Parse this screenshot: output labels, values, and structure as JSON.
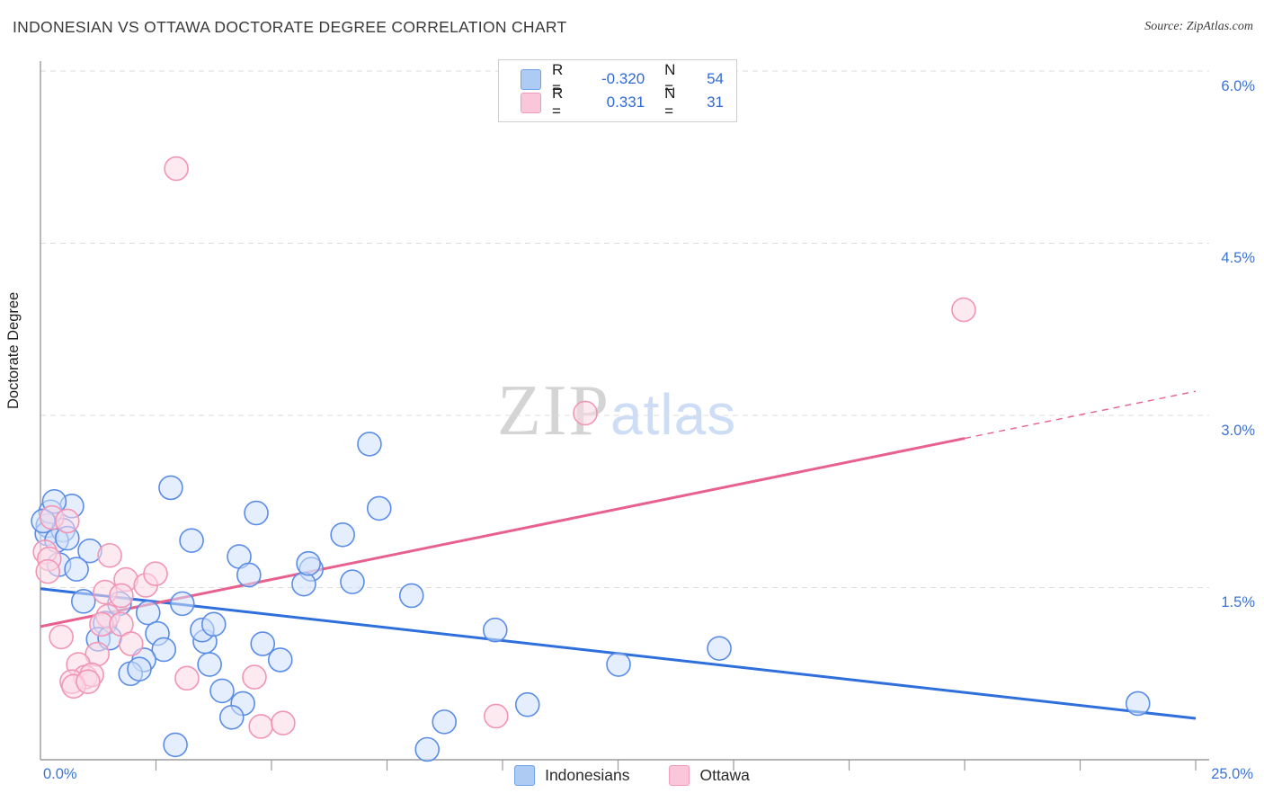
{
  "header": {
    "title": "INDONESIAN VS OTTAWA DOCTORATE DEGREE CORRELATION CHART",
    "source": "Source: ZipAtlas.com"
  },
  "watermark": {
    "zip": "ZIP",
    "atlas": "atlas"
  },
  "legend_box": {
    "series": [
      {
        "r_label": "R =",
        "r_value": "-0.320",
        "n_label": "N =",
        "n_value": "54"
      },
      {
        "r_label": "R =",
        "r_value": "0.331",
        "n_label": "N =",
        "n_value": "31"
      }
    ]
  },
  "axes": {
    "ylabel": "Doctorate Degree",
    "x_min_label": "0.0%",
    "x_max_label": "25.0%",
    "y_tick_labels": [
      "6.0%",
      "4.5%",
      "3.0%",
      "1.5%"
    ]
  },
  "bottom_legend": {
    "items": [
      {
        "label": "Indonesians"
      },
      {
        "label": "Ottawa"
      }
    ]
  },
  "colors": {
    "blue_fill": "#cfe0fa",
    "blue_stroke": "#5b8de8",
    "pink_fill": "#fbd9e6",
    "pink_stroke": "#f295b5",
    "blue_trend": "#2e6fdb",
    "pink_trend": "#e8608c",
    "grid": "#dddddd",
    "axis": "#9b9b9b",
    "tick_label": "#3b74d9"
  },
  "chart_data": {
    "type": "scatter",
    "title": "INDONESIAN VS OTTAWA DOCTORATE DEGREE CORRELATION CHART",
    "xlabel": "",
    "ylabel": "Doctorate Degree",
    "xlim": [
      0,
      25
    ],
    "ylim": [
      0,
      6.25
    ],
    "x_axis_ticks_every_pct": 2.5,
    "y_gridlines_pct": [
      6.0,
      4.5,
      3.0,
      1.5
    ],
    "grid": "dashed-horizontal",
    "legend_position": "bottom-center",
    "series": [
      {
        "name": "Indonesians",
        "R": -0.32,
        "N": 54,
        "points_pct": [
          [
            0.68,
            2.21
          ],
          [
            0.16,
            2.04
          ],
          [
            0.14,
            1.97
          ],
          [
            0.49,
            2.0
          ],
          [
            0.35,
            1.91
          ],
          [
            0.22,
            2.16
          ],
          [
            0.06,
            2.08
          ],
          [
            0.3,
            2.25
          ],
          [
            0.58,
            1.93
          ],
          [
            0.4,
            1.7
          ],
          [
            1.07,
            1.82
          ],
          [
            0.78,
            1.66
          ],
          [
            0.93,
            1.38
          ],
          [
            1.71,
            1.36
          ],
          [
            1.4,
            1.19
          ],
          [
            2.33,
            1.28
          ],
          [
            2.82,
            2.37
          ],
          [
            3.27,
            1.91
          ],
          [
            3.07,
            1.36
          ],
          [
            2.53,
            1.1
          ],
          [
            1.25,
            1.05
          ],
          [
            1.5,
            1.06
          ],
          [
            2.67,
            0.96
          ],
          [
            2.24,
            0.87
          ],
          [
            1.95,
            0.75
          ],
          [
            2.14,
            0.79
          ],
          [
            3.56,
            1.03
          ],
          [
            3.5,
            1.13
          ],
          [
            3.75,
            1.18
          ],
          [
            3.66,
            0.83
          ],
          [
            3.93,
            0.6
          ],
          [
            4.38,
            0.49
          ],
          [
            4.14,
            0.37
          ],
          [
            4.81,
            1.01
          ],
          [
            5.19,
            0.87
          ],
          [
            2.92,
            0.13
          ],
          [
            4.67,
            2.15
          ],
          [
            4.3,
            1.77
          ],
          [
            4.51,
            1.61
          ],
          [
            5.86,
            1.66
          ],
          [
            5.7,
            1.53
          ],
          [
            6.75,
            1.55
          ],
          [
            6.54,
            1.96
          ],
          [
            7.12,
            2.75
          ],
          [
            7.33,
            2.19
          ],
          [
            8.03,
            1.43
          ],
          [
            9.84,
            1.13
          ],
          [
            10.54,
            0.48
          ],
          [
            8.74,
            0.33
          ],
          [
            8.37,
            0.09
          ],
          [
            12.51,
            0.83
          ],
          [
            14.69,
            0.97
          ],
          [
            23.75,
            0.49
          ],
          [
            5.8,
            1.71
          ]
        ]
      },
      {
        "name": "Ottawa",
        "R": 0.331,
        "N": 31,
        "points_pct": [
          [
            2.94,
            5.15
          ],
          [
            19.98,
            3.92
          ],
          [
            11.79,
            3.02
          ],
          [
            0.25,
            2.11
          ],
          [
            0.58,
            2.08
          ],
          [
            0.1,
            1.81
          ],
          [
            0.19,
            1.75
          ],
          [
            1.5,
            1.78
          ],
          [
            0.16,
            1.64
          ],
          [
            1.85,
            1.57
          ],
          [
            2.28,
            1.52
          ],
          [
            2.49,
            1.62
          ],
          [
            1.4,
            1.46
          ],
          [
            1.75,
            1.43
          ],
          [
            1.46,
            1.25
          ],
          [
            0.45,
            1.07
          ],
          [
            1.32,
            1.18
          ],
          [
            1.75,
            1.18
          ],
          [
            1.96,
            1.01
          ],
          [
            1.23,
            0.92
          ],
          [
            0.82,
            0.83
          ],
          [
            0.97,
            0.72
          ],
          [
            0.68,
            0.68
          ],
          [
            1.11,
            0.74
          ],
          [
            0.72,
            0.64
          ],
          [
            1.03,
            0.68
          ],
          [
            3.17,
            0.71
          ],
          [
            4.63,
            0.72
          ],
          [
            4.77,
            0.29
          ],
          [
            5.25,
            0.32
          ],
          [
            9.86,
            0.38
          ]
        ]
      }
    ],
    "trend_lines": [
      {
        "series": "Indonesians",
        "x1": 0,
        "y1": 1.49,
        "x2": 25,
        "y2": 0.36,
        "style": "solid"
      },
      {
        "series": "Ottawa",
        "x1": 0,
        "y1": 1.16,
        "x2": 20,
        "y2": 2.8,
        "style": "solid"
      },
      {
        "series": "Ottawa",
        "x1": 20,
        "y1": 2.8,
        "x2": 25,
        "y2": 3.21,
        "style": "dashed"
      }
    ]
  }
}
